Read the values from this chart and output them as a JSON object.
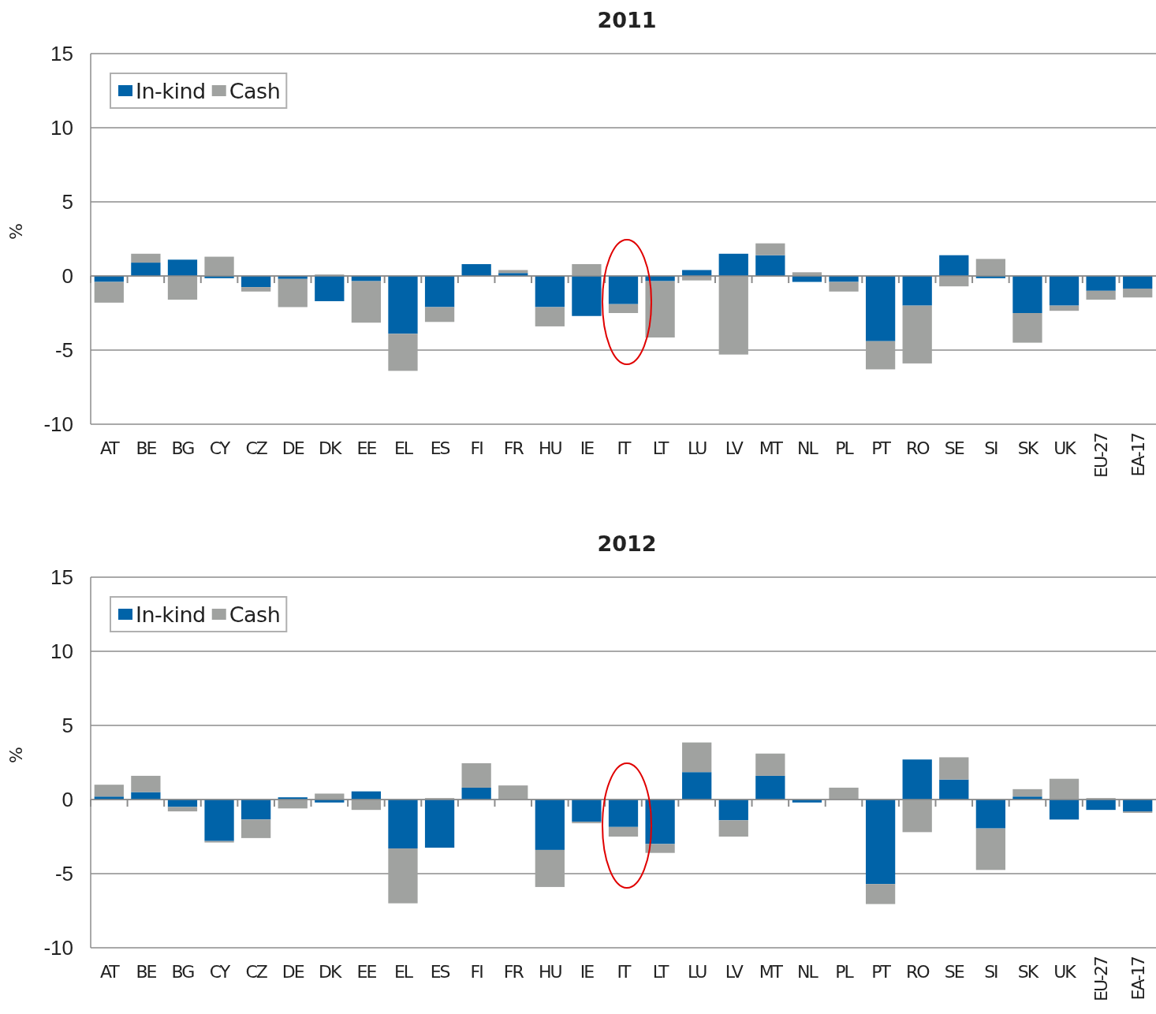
{
  "chart_data": [
    {
      "type": "bar",
      "title": "2011",
      "ylabel": "%",
      "stacked": true,
      "grid": "y",
      "legend": "top left",
      "ylim": [
        -10,
        15
      ],
      "yticks": [
        -10,
        -5,
        0,
        5,
        10,
        15
      ],
      "categories": [
        "AT",
        "BE",
        "BG",
        "CY",
        "CZ",
        "DE",
        "DK",
        "EE",
        "EL",
        "ES",
        "FI",
        "FR",
        "HU",
        "IE",
        "IT",
        "LT",
        "LU",
        "LV",
        "MT",
        "NL",
        "PL",
        "PT",
        "RO",
        "SE",
        "SI",
        "SK",
        "UK",
        "EU-27",
        "EA-17"
      ],
      "series": [
        {
          "name": "In-kind",
          "color": "#0063a8",
          "values": [
            -0.4,
            0.9,
            1.1,
            -0.15,
            -0.75,
            -0.2,
            -1.7,
            -0.35,
            -3.9,
            -2.1,
            0.8,
            0.2,
            -2.1,
            -2.7,
            -1.9,
            -0.35,
            0.4,
            1.5,
            1.4,
            -0.4,
            -0.4,
            -4.4,
            -2.0,
            1.4,
            -0.15,
            -2.5,
            -2.0,
            -1.0,
            -0.85
          ]
        },
        {
          "name": "Cash",
          "color": "#a0a2a0",
          "values": [
            -1.4,
            0.6,
            -1.6,
            1.3,
            -0.3,
            -1.9,
            0.1,
            -2.8,
            -2.5,
            -1.0,
            0,
            0.2,
            -1.3,
            0.8,
            -0.6,
            -3.8,
            -0.3,
            -5.3,
            0.8,
            0.25,
            -0.65,
            -1.9,
            -3.9,
            -0.7,
            1.15,
            -2.0,
            -0.35,
            -0.6,
            -0.6
          ]
        }
      ]
    },
    {
      "type": "bar",
      "title": "2012",
      "ylabel": "%",
      "stacked": true,
      "grid": "y",
      "legend": "top left",
      "ylim": [
        -10,
        15
      ],
      "yticks": [
        -10,
        -5,
        0,
        5,
        10,
        15
      ],
      "categories": [
        "AT",
        "BE",
        "BG",
        "CY",
        "CZ",
        "DE",
        "DK",
        "EE",
        "EL",
        "ES",
        "FI",
        "FR",
        "HU",
        "IE",
        "IT",
        "LT",
        "LU",
        "LV",
        "MT",
        "NL",
        "PL",
        "PT",
        "RO",
        "SE",
        "SI",
        "SK",
        "UK",
        "EU-27",
        "EA-17"
      ],
      "series": [
        {
          "name": "In-kind",
          "color": "#0063a8",
          "values": [
            0.2,
            0.5,
            -0.5,
            -2.8,
            -1.35,
            0.15,
            -0.2,
            0.55,
            -3.3,
            -3.25,
            0.8,
            null,
            -3.4,
            -1.5,
            -1.85,
            -3.0,
            1.85,
            -1.4,
            1.6,
            -0.2,
            null,
            -5.7,
            2.7,
            1.35,
            -1.95,
            0.2,
            -1.35,
            -0.7,
            -0.8
          ]
        },
        {
          "name": "Cash",
          "color": "#a0a2a0",
          "values": [
            0.8,
            1.1,
            -0.3,
            -0.1,
            -1.25,
            -0.6,
            0.4,
            -0.7,
            -3.7,
            0.1,
            1.65,
            0.95,
            -2.5,
            -0.1,
            -0.65,
            -0.6,
            2.0,
            -1.1,
            1.5,
            0,
            0.8,
            -1.35,
            -2.2,
            1.5,
            -2.8,
            0.5,
            1.4,
            0.1,
            -0.1
          ]
        }
      ]
    }
  ]
}
